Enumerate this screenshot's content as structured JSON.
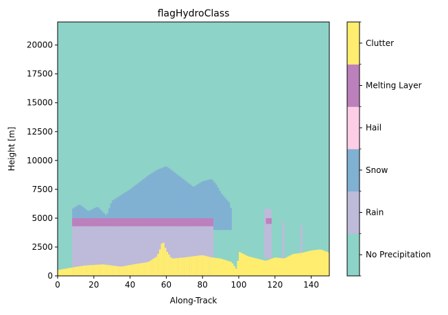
{
  "chart_data": {
    "type": "heatmap",
    "title": "flagHydroClass",
    "xlabel": "Along-Track",
    "ylabel": "Height [m]",
    "xlim": [
      0,
      150
    ],
    "ylim": [
      0,
      22000
    ],
    "xticks": [
      0,
      20,
      40,
      60,
      80,
      100,
      120,
      140
    ],
    "yticks": [
      0,
      2500,
      5000,
      7500,
      10000,
      12500,
      15000,
      17500,
      20000
    ],
    "classes": [
      {
        "name": "No Precipitation",
        "color": "#8dd3c7"
      },
      {
        "name": "Rain",
        "color": "#bebada"
      },
      {
        "name": "Snow",
        "color": "#80b1d3"
      },
      {
        "name": "Hail",
        "color": "#fccde5"
      },
      {
        "name": "Melting Layer",
        "color": "#bc80bd"
      },
      {
        "name": "Clutter",
        "color": "#ffed6f"
      }
    ],
    "background_class": "No Precipitation",
    "clutter_top": [
      [
        0,
        500
      ],
      [
        7,
        700
      ],
      [
        15,
        900
      ],
      [
        25,
        1000
      ],
      [
        35,
        800
      ],
      [
        42,
        1000
      ],
      [
        50,
        1200
      ],
      [
        55,
        1700
      ],
      [
        57,
        2500
      ],
      [
        58,
        3100
      ],
      [
        60,
        2200
      ],
      [
        63,
        1500
      ],
      [
        70,
        1600
      ],
      [
        80,
        1800
      ],
      [
        85,
        1600
      ],
      [
        90,
        1500
      ],
      [
        96,
        1200
      ],
      [
        99,
        500
      ],
      [
        100,
        2100
      ],
      [
        105,
        1700
      ],
      [
        110,
        1500
      ],
      [
        115,
        1300
      ],
      [
        120,
        1600
      ],
      [
        125,
        1500
      ],
      [
        130,
        1900
      ],
      [
        135,
        2000
      ],
      [
        140,
        2200
      ],
      [
        145,
        2300
      ],
      [
        150,
        2000
      ]
    ],
    "rain_region": {
      "x_start": 8,
      "x_end": 86,
      "top": 4300
    },
    "melting_layer": {
      "x_start": 8,
      "x_end": 86,
      "bottom": 4300,
      "top": 5000
    },
    "snow_top": [
      [
        8,
        5800
      ],
      [
        12,
        6200
      ],
      [
        17,
        5600
      ],
      [
        22,
        6000
      ],
      [
        27,
        5200
      ],
      [
        30,
        6500
      ],
      [
        35,
        7000
      ],
      [
        40,
        7500
      ],
      [
        45,
        8100
      ],
      [
        50,
        8700
      ],
      [
        55,
        9200
      ],
      [
        60,
        9500
      ],
      [
        65,
        8900
      ],
      [
        70,
        8300
      ],
      [
        75,
        7700
      ],
      [
        80,
        8200
      ],
      [
        85,
        8400
      ],
      [
        88,
        7800
      ],
      [
        90,
        7200
      ],
      [
        95,
        6300
      ],
      [
        96,
        5500
      ]
    ],
    "isolated_cells": [
      {
        "x_start": 114,
        "x_end": 118,
        "bottom": 1500,
        "top": 5800,
        "class": "Rain"
      },
      {
        "x_start": 115,
        "x_end": 118,
        "bottom": 4500,
        "top": 5000,
        "class": "Melting Layer"
      },
      {
        "x_start": 124,
        "x_end": 125,
        "bottom": 1500,
        "top": 4700,
        "class": "Rain"
      },
      {
        "x_start": 134,
        "x_end": 135,
        "bottom": 1800,
        "top": 4400,
        "class": "Rain"
      }
    ]
  }
}
